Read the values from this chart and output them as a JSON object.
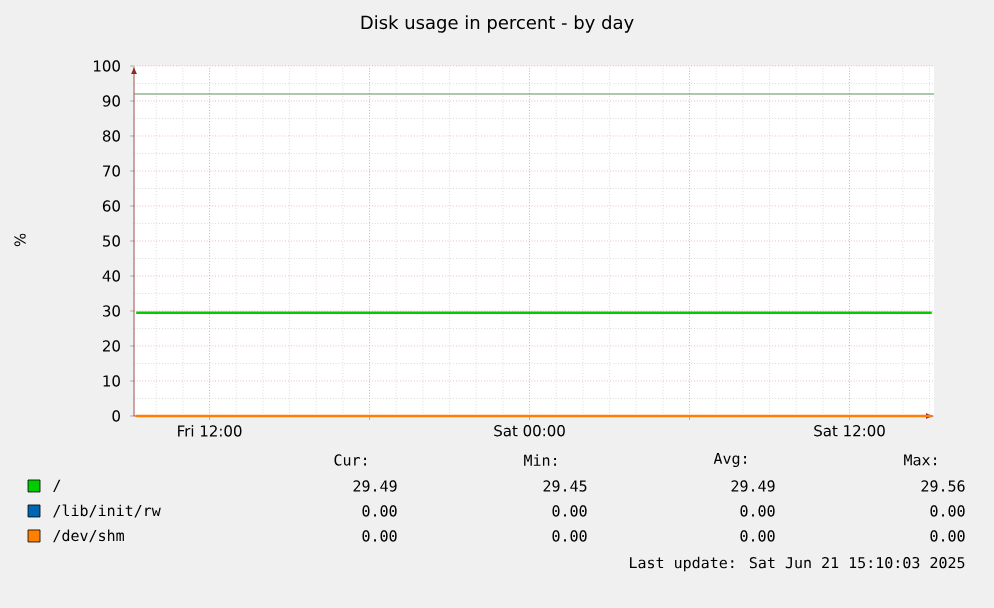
{
  "chart_data": {
    "type": "line",
    "title": "Disk usage in percent - by day",
    "ylabel": "%",
    "xlim": [
      "2025-06-20T09:10",
      "2025-06-21T15:10"
    ],
    "ylim": [
      0,
      100
    ],
    "xticks": [
      {
        "value": "2025-06-20T12:00",
        "label": "Fri 12:00"
      },
      {
        "value": "2025-06-20T18:00",
        "label": null
      },
      {
        "value": "2025-06-21T00:00",
        "label": "Sat 00:00"
      },
      {
        "value": "2025-06-21T06:00",
        "label": null
      },
      {
        "value": "2025-06-21T12:00",
        "label": "Sat 12:00"
      }
    ],
    "yticks": [
      0,
      10,
      20,
      30,
      40,
      50,
      60,
      70,
      80,
      90,
      100
    ],
    "grid": true,
    "legend": "bottom",
    "marker": "none",
    "line_style": "solid",
    "series": [
      {
        "name": "/",
        "color": "#00cc00",
        "x": [
          "2025-06-20T09:15",
          "2025-06-21T15:05"
        ],
        "values": [
          29.5,
          29.5
        ]
      },
      {
        "name": "/lib/init/rw",
        "color": "#0066b3",
        "values": [
          null,
          null
        ]
      },
      {
        "name": "/dev/shm",
        "color": "#ff8000",
        "x": [
          "2025-06-20T09:15",
          "2025-06-21T15:05"
        ],
        "values": [
          0,
          0
        ]
      }
    ],
    "ref_lines": [
      {
        "axis": "y",
        "value": 92,
        "color": "#5f8f5f"
      }
    ],
    "annotations": [
      "Cur:",
      "Min:",
      "Avg:",
      "Max:",
      "29.49",
      "29.45",
      "29.49",
      "29.56",
      "0.00",
      "0.00",
      "0.00",
      "0.00",
      "0.00",
      "0.00",
      "0.00",
      "0.00",
      "Last update:  Sat Jun 21 15:10:03 2025"
    ]
  }
}
